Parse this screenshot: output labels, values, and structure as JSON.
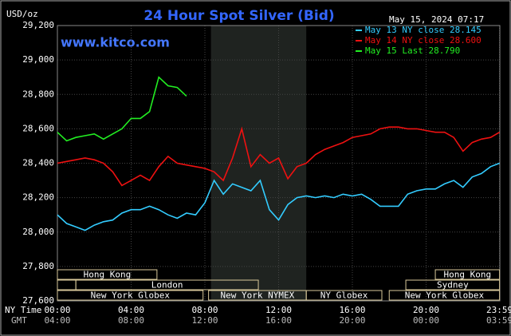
{
  "chart_data": {
    "type": "line",
    "title": "24 Hour Spot Silver (Bid)",
    "unit_label": "USD/oz",
    "timestamp": "May 15, 2024 07:17",
    "watermark": "www.kitco.com",
    "x_axis_labels": [
      "NY Time",
      "GMT"
    ],
    "xlim": [
      0,
      24
    ],
    "xticks": [
      {
        "value": 0,
        "label": "00:00"
      },
      {
        "value": 4,
        "label": "04:00"
      },
      {
        "value": 8,
        "label": "08:00"
      },
      {
        "value": 12,
        "label": "12:00"
      },
      {
        "value": 16,
        "label": "16:00"
      },
      {
        "value": 20,
        "label": "20:00"
      },
      {
        "value": 23.983,
        "label": "23:59"
      }
    ],
    "gmt_labels": [
      "04:00",
      "08:00",
      "12:00",
      "16:00",
      "20:00",
      "00:00",
      "03:59"
    ],
    "ylim": [
      27.6,
      29.2
    ],
    "yticks": [
      {
        "value": 27.6,
        "label": "27,600"
      },
      {
        "value": 27.8,
        "label": "27,800"
      },
      {
        "value": 28.0,
        "label": "28,000"
      },
      {
        "value": 28.2,
        "label": "28,200"
      },
      {
        "value": 28.4,
        "label": "28,400"
      },
      {
        "value": 28.6,
        "label": "28,600"
      },
      {
        "value": 28.8,
        "label": "28,800"
      },
      {
        "value": 29.0,
        "label": "29,000"
      },
      {
        "value": 29.2,
        "label": "29,200"
      }
    ],
    "grid": true,
    "shaded_region": [
      8.33,
      13.5
    ],
    "sessions": [
      {
        "label": "Hong Kong",
        "start": 0,
        "end": 5.4,
        "row": 0
      },
      {
        "label": "Hong Kong",
        "start": 20.5,
        "end": 23.983,
        "row": 0
      },
      {
        "start": 0,
        "end": 1,
        "row": 1
      },
      {
        "label": "London",
        "start": 1,
        "end": 10.9,
        "row": 1
      },
      {
        "label": "Sydney",
        "start": 18.9,
        "end": 23.983,
        "row": 1
      },
      {
        "label": "New York Globex",
        "start": 0,
        "end": 7.9,
        "row": 2
      },
      {
        "label": "New York NYMEX",
        "start": 8.2,
        "end": 13.5,
        "row": 2
      },
      {
        "label": "NY Globex",
        "start": 13.5,
        "end": 17.6,
        "row": 2
      },
      {
        "label": "New York Globex",
        "start": 18,
        "end": 23.983,
        "row": 2
      }
    ],
    "x": [
      0,
      0.5,
      1,
      1.5,
      2,
      2.5,
      3,
      3.5,
      4,
      4.5,
      5,
      5.5,
      6,
      6.5,
      7,
      7.5,
      8,
      8.5,
      9,
      9.5,
      10,
      10.5,
      11,
      11.5,
      12,
      12.5,
      13,
      13.5,
      14,
      14.5,
      15,
      15.5,
      16,
      16.5,
      17,
      17.5,
      18,
      18.5,
      19,
      19.5,
      20,
      20.5,
      21,
      21.5,
      22,
      22.5,
      23,
      23.5,
      23.983
    ],
    "series": [
      {
        "name": "May 13 NY close 28.145",
        "color": "#33ccff",
        "values": [
          28.1,
          28.05,
          28.03,
          28.01,
          28.04,
          28.06,
          28.07,
          28.11,
          28.13,
          28.13,
          28.15,
          28.13,
          28.1,
          28.08,
          28.11,
          28.1,
          28.17,
          28.3,
          28.22,
          28.28,
          28.26,
          28.24,
          28.3,
          28.13,
          28.07,
          28.16,
          28.2,
          28.21,
          28.2,
          28.21,
          28.2,
          28.22,
          28.21,
          28.22,
          28.19,
          28.15,
          28.15,
          28.15,
          28.22,
          28.24,
          28.25,
          28.25,
          28.28,
          28.3,
          28.26,
          28.32,
          28.34,
          28.38,
          28.4
        ]
      },
      {
        "name": "May 14 NY close 28.600",
        "color": "#ee1111",
        "values": [
          28.4,
          28.41,
          28.42,
          28.43,
          28.42,
          28.4,
          28.35,
          28.27,
          28.3,
          28.33,
          28.3,
          28.38,
          28.44,
          28.4,
          28.39,
          28.38,
          28.37,
          28.35,
          28.3,
          28.43,
          28.6,
          28.38,
          28.45,
          28.4,
          28.43,
          28.31,
          28.38,
          28.4,
          28.45,
          28.48,
          28.5,
          28.52,
          28.55,
          28.56,
          28.57,
          28.6,
          28.61,
          28.61,
          28.6,
          28.6,
          28.59,
          28.58,
          28.58,
          28.55,
          28.47,
          28.52,
          28.54,
          28.55,
          28.58
        ]
      },
      {
        "name": "May 15 Last 28.790",
        "color": "#22ee22",
        "values": [
          28.58,
          28.53,
          28.55,
          28.56,
          28.57,
          28.54,
          28.57,
          28.6,
          28.66,
          28.66,
          28.7,
          28.9,
          28.85,
          28.84,
          28.79,
          null,
          null,
          null,
          null,
          null,
          null,
          null,
          null,
          null,
          null,
          null,
          null,
          null,
          null,
          null,
          null,
          null,
          null,
          null,
          null,
          null,
          null,
          null,
          null,
          null,
          null,
          null,
          null,
          null,
          null,
          null,
          null,
          null,
          null
        ]
      }
    ]
  }
}
